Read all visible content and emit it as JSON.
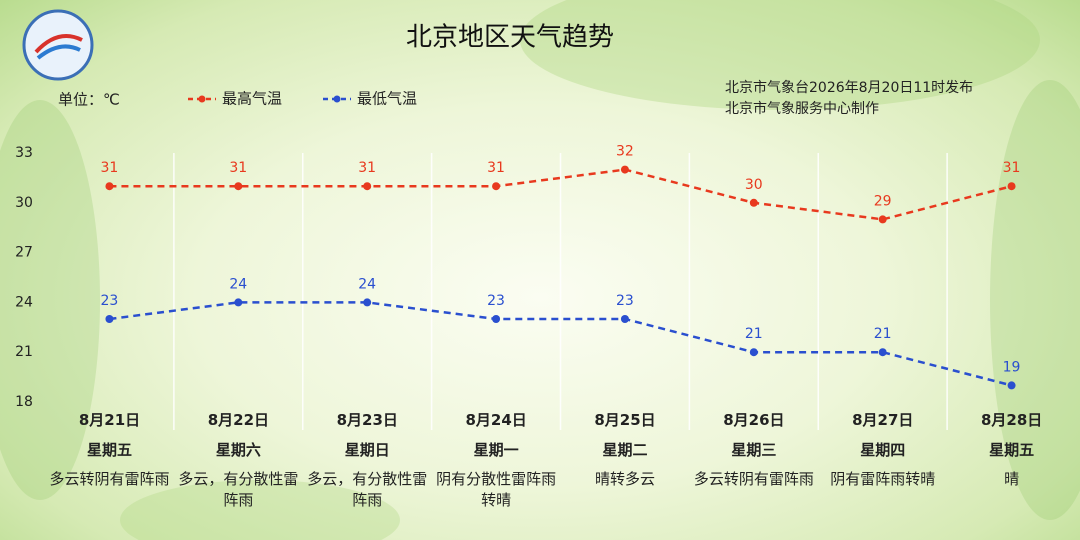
{
  "chart_data": {
    "type": "line",
    "title": "北京地区天气趋势",
    "unit_label": "单位：℃",
    "publisher": [
      "北京市气象台2026年8月20日11时发布",
      "北京市气象服务中心制作"
    ],
    "categories": [
      "8月21日",
      "8月22日",
      "8月23日",
      "8月24日",
      "8月25日",
      "8月26日",
      "8月27日",
      "8月28日"
    ],
    "weekdays": [
      "星期五",
      "星期六",
      "星期日",
      "星期一",
      "星期二",
      "星期三",
      "星期四",
      "星期五"
    ],
    "weather": [
      "多云转阴有雷阵雨",
      "多云，有分散性雷阵雨",
      "多云，有分散性雷阵雨",
      "阴有分散性雷阵雨转晴",
      "晴转多云",
      "多云转阴有雷阵雨",
      "阴有雷阵雨转晴",
      "晴"
    ],
    "series": [
      {
        "name": "最高气温",
        "color": "#e8391e",
        "values": [
          31,
          31,
          31,
          31,
          32,
          30,
          29,
          31
        ]
      },
      {
        "name": "最低气温",
        "color": "#2a4fcf",
        "values": [
          23,
          24,
          24,
          23,
          23,
          21,
          21,
          19
        ]
      }
    ],
    "ylim": [
      18,
      33
    ],
    "yticks": [
      18,
      21,
      24,
      27,
      30,
      33
    ],
    "grid": false
  }
}
